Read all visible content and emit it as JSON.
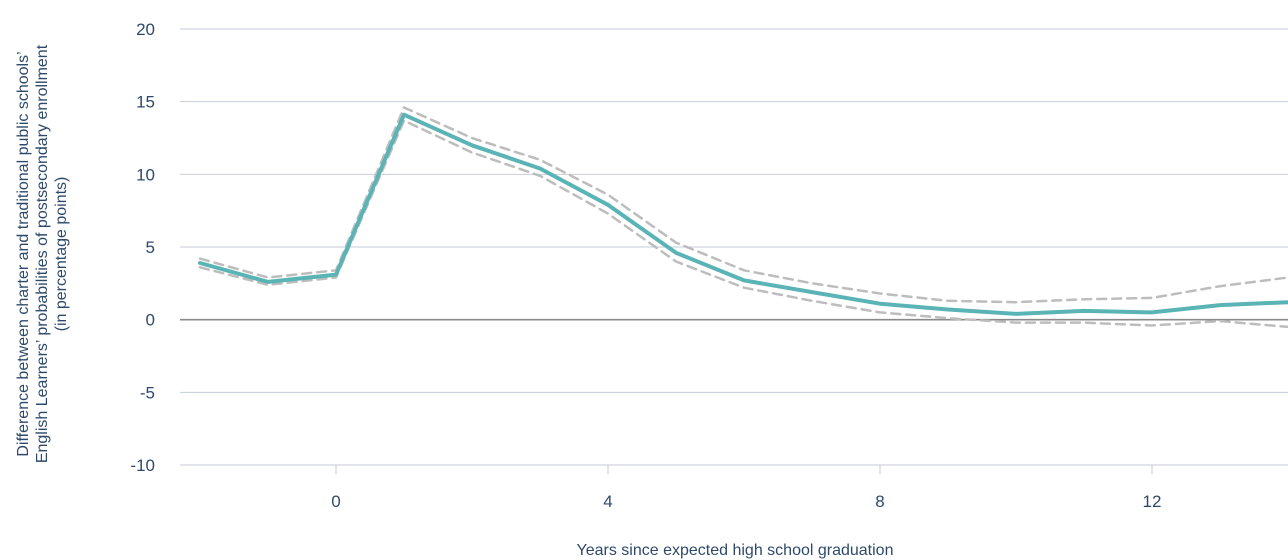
{
  "chart_data": {
    "type": "line",
    "title": "",
    "xlabel": "Years since expected high school graduation",
    "ylabel_lines": [
      "Difference between charter and traditional public schools’",
      "English Learners’ probabilities of postsecondary enrollment",
      "(in percentage points)"
    ],
    "xlim": [
      -2.3,
      14
    ],
    "ylim": [
      -10,
      20
    ],
    "x_ticks": [
      0,
      4,
      8,
      12
    ],
    "x_tick_labels": [
      "0",
      "4",
      "8",
      "12"
    ],
    "y_ticks": [
      20,
      15,
      10,
      5,
      0,
      -5,
      -10
    ],
    "y_tick_labels": [
      "20",
      "15",
      "10",
      "5",
      "0",
      "-5",
      "-10"
    ],
    "grid": "horizontal",
    "legend": "none",
    "colors": {
      "estimate": "#5ab4b5",
      "confidence_band": "#bdbdbd",
      "gridline": "#c5ced8",
      "zero_line": "#8a8a8a",
      "text": "#2e4a6b"
    },
    "series": [
      {
        "role": "estimate",
        "style": "solid",
        "x": [
          -2,
          -1,
          0,
          1,
          2,
          3,
          4,
          5,
          6,
          7,
          8,
          9,
          10,
          11,
          12,
          13,
          14
        ],
        "y": [
          3.9,
          2.6,
          3.1,
          14.1,
          12.0,
          10.4,
          7.9,
          4.6,
          2.7,
          1.9,
          1.1,
          0.7,
          0.4,
          0.6,
          0.5,
          1.0,
          1.2
        ]
      },
      {
        "role": "upper-bound",
        "style": "dashed",
        "x": [
          -2,
          -1,
          0,
          1,
          2,
          3,
          4,
          5,
          6,
          7,
          8,
          9,
          10,
          11,
          12,
          13,
          14
        ],
        "y": [
          4.2,
          2.9,
          3.4,
          14.6,
          12.5,
          11.0,
          8.6,
          5.3,
          3.4,
          2.5,
          1.8,
          1.3,
          1.2,
          1.4,
          1.5,
          2.3,
          2.9
        ]
      },
      {
        "role": "lower-bound",
        "style": "dashed",
        "x": [
          -2,
          -1,
          0,
          1,
          2,
          3,
          4,
          5,
          6,
          7,
          8,
          9,
          10,
          11,
          12,
          13,
          14
        ],
        "y": [
          3.6,
          2.4,
          2.9,
          13.7,
          11.5,
          9.9,
          7.3,
          4.0,
          2.2,
          1.3,
          0.5,
          0.1,
          -0.2,
          -0.2,
          -0.4,
          -0.1,
          -0.5
        ]
      }
    ]
  }
}
